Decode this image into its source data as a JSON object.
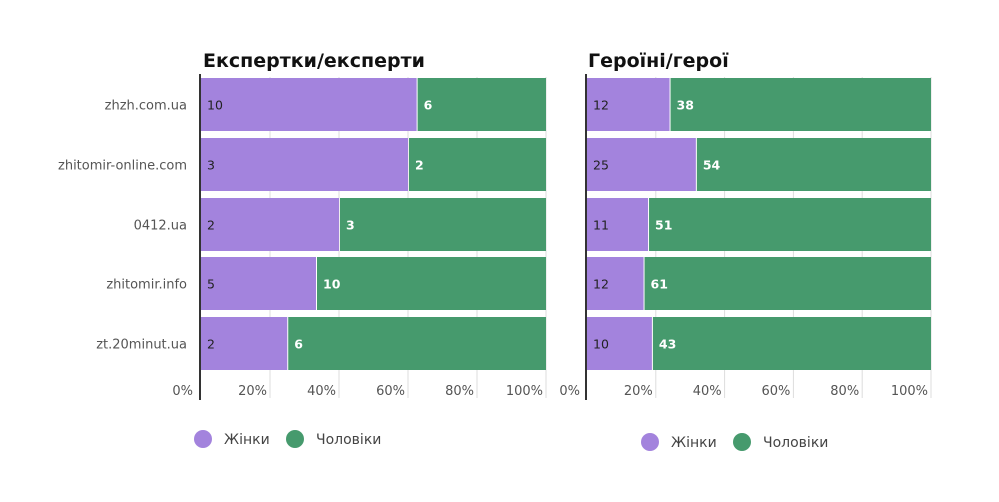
{
  "colors": {
    "women": "#a383dd",
    "men": "#469a6d",
    "axis": "#333333",
    "grid": "#dddddd"
  },
  "chart_data": [
    {
      "type": "bar",
      "orientation": "horizontal",
      "stacked": "percent",
      "title": "Експертки/експерти",
      "categories": [
        "zhzh.com.ua",
        "zhitomir-online.com",
        "0412.ua",
        "zhitomir.info",
        "zt.20minut.ua"
      ],
      "series": [
        {
          "name": "Жінки",
          "values": [
            10,
            3,
            2,
            5,
            2
          ]
        },
        {
          "name": "Чоловіки",
          "values": [
            6,
            2,
            3,
            10,
            6
          ]
        }
      ],
      "xticks": [
        "0%",
        "20%",
        "40%",
        "60%",
        "80%",
        "100%"
      ],
      "xlim": [
        0,
        100
      ],
      "grid": true,
      "legend": "bottom"
    },
    {
      "type": "bar",
      "orientation": "horizontal",
      "stacked": "percent",
      "title": "Героїні/герої",
      "categories": [
        "zhzh.com.ua",
        "zhitomir-online.com",
        "0412.ua",
        "zhitomir.info",
        "zt.20minut.ua"
      ],
      "series": [
        {
          "name": "Жінки",
          "values": [
            12,
            25,
            11,
            12,
            10
          ]
        },
        {
          "name": "Чоловіки",
          "values": [
            38,
            54,
            51,
            61,
            43
          ]
        }
      ],
      "xticks": [
        "0%",
        "20%",
        "40%",
        "60%",
        "80%",
        "100%"
      ],
      "xlim": [
        0,
        100
      ],
      "grid": true,
      "legend": "bottom"
    }
  ]
}
